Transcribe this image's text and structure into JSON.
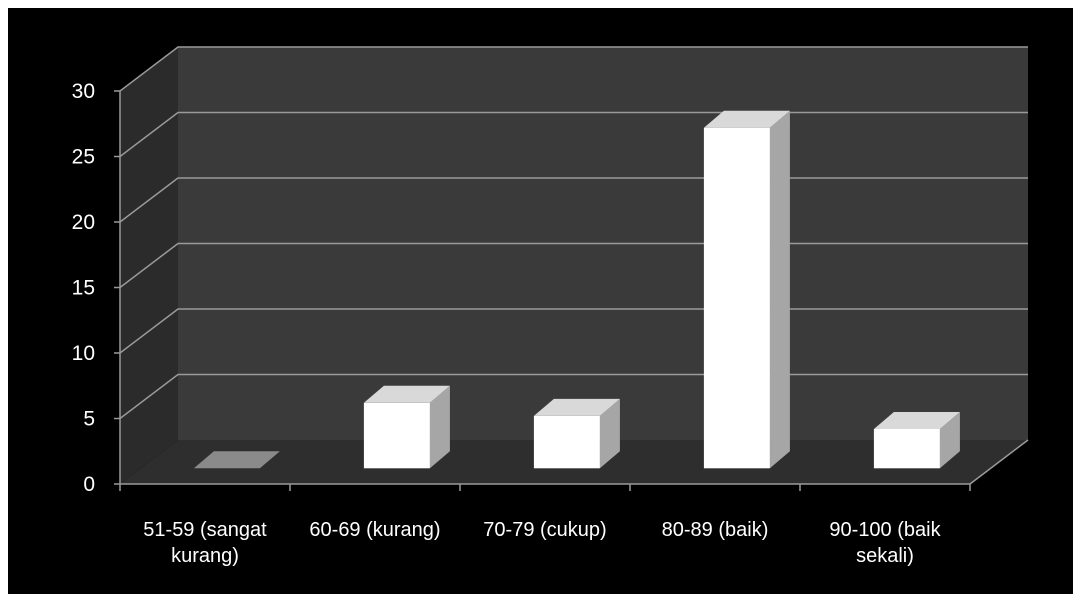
{
  "chart_data": {
    "type": "bar",
    "style": "3d-column",
    "title": "",
    "xlabel": "",
    "ylabel": "",
    "categories": [
      [
        "51-59 (sangat",
        "kurang)"
      ],
      [
        "60-69 (kurang)"
      ],
      [
        "70-79 (cukup)"
      ],
      [
        "80-89 (baik)"
      ],
      [
        "90-100 (baik",
        "sekali)"
      ]
    ],
    "values": [
      0,
      5,
      4,
      26,
      3
    ],
    "ylim": [
      0,
      30
    ],
    "yticks": [
      "0",
      "5",
      "10",
      "15",
      "20",
      "25",
      "30"
    ],
    "grid": true,
    "legend": "none",
    "colors": {
      "background": "#000000",
      "back_wall": "#3a3a3a",
      "side_wall": "#2b2b2b",
      "floor": "#2e2e2e",
      "bar_front": "#ffffff",
      "bar_top": "#d9d9d9",
      "bar_side": "#a6a6a6",
      "gridline": "#9a9a9a",
      "text": "#ffffff"
    }
  }
}
